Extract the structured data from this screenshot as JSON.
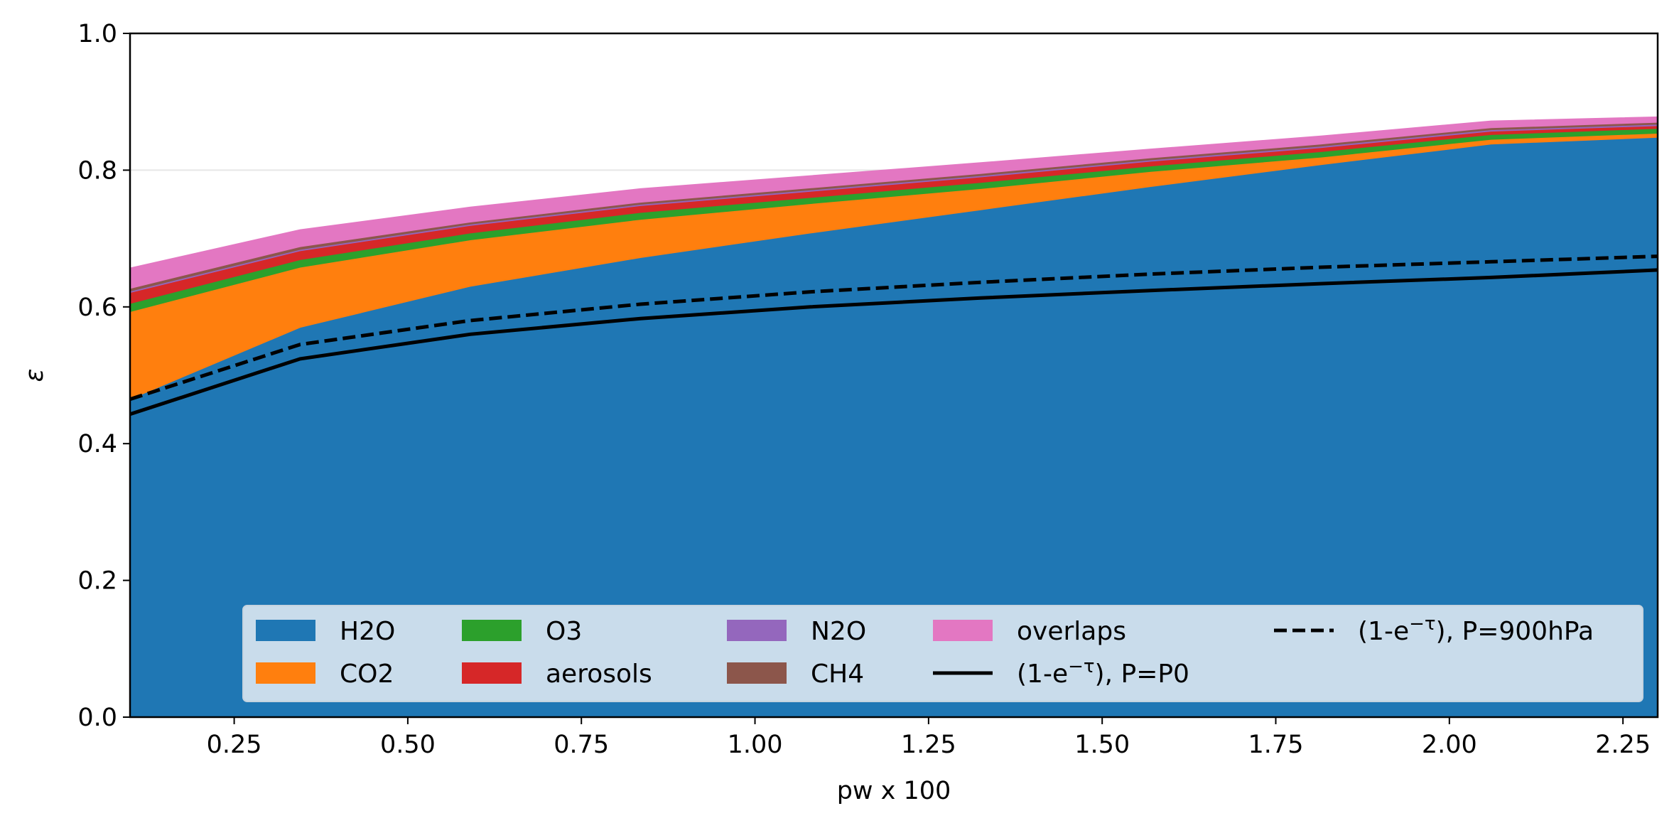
{
  "chart_data": {
    "type": "area",
    "xlabel": "pw x 100",
    "ylabel": "ε",
    "xlim": [
      0.1,
      2.3
    ],
    "ylim": [
      0.0,
      1.0
    ],
    "xticks": [
      {
        "value": 0.25,
        "label": "0.25"
      },
      {
        "value": 0.5,
        "label": "0.50"
      },
      {
        "value": 0.75,
        "label": "0.75"
      },
      {
        "value": 1.0,
        "label": "1.00"
      },
      {
        "value": 1.25,
        "label": "1.25"
      },
      {
        "value": 1.5,
        "label": "1.50"
      },
      {
        "value": 1.75,
        "label": "1.75"
      },
      {
        "value": 2.0,
        "label": "2.00"
      },
      {
        "value": 2.25,
        "label": "2.25"
      }
    ],
    "yticks": [
      {
        "value": 0.0,
        "label": "0.0"
      },
      {
        "value": 0.2,
        "label": "0.2"
      },
      {
        "value": 0.4,
        "label": "0.4"
      },
      {
        "value": 0.6,
        "label": "0.6"
      },
      {
        "value": 0.8,
        "label": "0.8"
      },
      {
        "value": 1.0,
        "label": "1.0"
      }
    ],
    "gridline_y": 0.8,
    "legend_position": "lower-center",
    "x": [
      0.1,
      0.345,
      0.59,
      0.835,
      1.08,
      1.325,
      1.57,
      1.815,
      2.06,
      2.3
    ],
    "stacked_series": [
      {
        "name": "H2O",
        "color": "#1f77b4",
        "values": [
          0.465,
          0.57,
          0.63,
          0.672,
          0.708,
          0.742,
          0.776,
          0.808,
          0.838,
          0.848
        ]
      },
      {
        "name": "CO2",
        "color": "#ff7f0e",
        "values": [
          0.128,
          0.088,
          0.068,
          0.056,
          0.043,
          0.031,
          0.022,
          0.011,
          0.007,
          0.006
        ]
      },
      {
        "name": "O3",
        "color": "#2ca02c",
        "values": [
          0.012,
          0.011,
          0.01,
          0.01,
          0.009,
          0.009,
          0.008,
          0.008,
          0.007,
          0.007
        ]
      },
      {
        "name": "aerosols",
        "color": "#d62728",
        "values": [
          0.016,
          0.013,
          0.011,
          0.01,
          0.009,
          0.008,
          0.007,
          0.006,
          0.005,
          0.004
        ]
      },
      {
        "name": "N2O",
        "color": "#9467bd",
        "values": [
          0.002,
          0.002,
          0.002,
          0.002,
          0.002,
          0.002,
          0.002,
          0.002,
          0.002,
          0.002
        ]
      },
      {
        "name": "CH4",
        "color": "#8c564b",
        "values": [
          0.004,
          0.004,
          0.003,
          0.003,
          0.003,
          0.003,
          0.003,
          0.003,
          0.003,
          0.003
        ]
      },
      {
        "name": "overlaps",
        "color": "#e377c2",
        "values": [
          0.03,
          0.025,
          0.022,
          0.02,
          0.018,
          0.016,
          0.013,
          0.012,
          0.01,
          0.008
        ]
      }
    ],
    "line_series": [
      {
        "name": "(1-e⁻ᵗ), P=P0",
        "label_prefix": "(1-e",
        "label_exp": "−τ",
        "label_suffix": "), P=P0",
        "style": "solid",
        "color": "#000000",
        "values": [
          0.443,
          0.524,
          0.56,
          0.583,
          0.6,
          0.613,
          0.624,
          0.634,
          0.643,
          0.654
        ]
      },
      {
        "name": "(1-e⁻ᵗ), P=900hPa",
        "label_prefix": "(1-e",
        "label_exp": "−τ",
        "label_suffix": "), P=900hPa",
        "style": "dashed",
        "color": "#000000",
        "values": [
          0.465,
          0.545,
          0.58,
          0.604,
          0.622,
          0.636,
          0.648,
          0.658,
          0.666,
          0.674
        ]
      }
    ]
  }
}
